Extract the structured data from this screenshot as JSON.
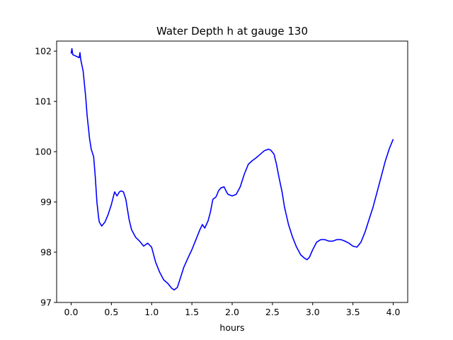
{
  "chart_data": {
    "type": "line",
    "title": "Water Depth h at gauge 130",
    "xlabel": "hours",
    "ylabel": "",
    "xlim": [
      -0.18,
      4.18
    ],
    "ylim": [
      97.0,
      102.2
    ],
    "xticks": [
      0.0,
      0.5,
      1.0,
      1.5,
      2.0,
      2.5,
      3.0,
      3.5,
      4.0
    ],
    "xtick_labels": [
      "0.0",
      "0.5",
      "1.0",
      "1.5",
      "2.0",
      "2.5",
      "3.0",
      "3.5",
      "4.0"
    ],
    "yticks": [
      97,
      98,
      99,
      100,
      101,
      102
    ],
    "ytick_labels": [
      "97",
      "98",
      "99",
      "100",
      "101",
      "102"
    ],
    "grid": false,
    "legend": "none",
    "series": [
      {
        "color": "#0000ff",
        "x": [
          0.0,
          0.01,
          0.02,
          0.1,
          0.11,
          0.12,
          0.15,
          0.18,
          0.2,
          0.22,
          0.23,
          0.24,
          0.25,
          0.28,
          0.3,
          0.32,
          0.34,
          0.35,
          0.38,
          0.42,
          0.46,
          0.5,
          0.54,
          0.57,
          0.6,
          0.62,
          0.65,
          0.68,
          0.7,
          0.72,
          0.75,
          0.8,
          0.85,
          0.9,
          0.95,
          1.0,
          1.05,
          1.1,
          1.15,
          1.2,
          1.25,
          1.28,
          1.32,
          1.36,
          1.4,
          1.45,
          1.5,
          1.55,
          1.6,
          1.63,
          1.66,
          1.7,
          1.73,
          1.76,
          1.8,
          1.83,
          1.86,
          1.9,
          1.93,
          1.95,
          2.0,
          2.05,
          2.1,
          2.15,
          2.2,
          2.25,
          2.3,
          2.35,
          2.4,
          2.45,
          2.48,
          2.52,
          2.55,
          2.58,
          2.62,
          2.65,
          2.7,
          2.75,
          2.8,
          2.85,
          2.9,
          2.93,
          2.96,
          3.0,
          3.05,
          3.1,
          3.15,
          3.2,
          3.25,
          3.3,
          3.35,
          3.4,
          3.45,
          3.5,
          3.55,
          3.6,
          3.65,
          3.7,
          3.75,
          3.8,
          3.85,
          3.9,
          3.95,
          4.0
        ],
        "y": [
          101.95,
          102.05,
          101.93,
          101.87,
          101.97,
          101.83,
          101.6,
          101.1,
          100.7,
          100.4,
          100.25,
          100.15,
          100.05,
          99.9,
          99.5,
          99.0,
          98.7,
          98.6,
          98.52,
          98.6,
          98.75,
          98.95,
          99.2,
          99.12,
          99.2,
          99.22,
          99.2,
          99.05,
          98.85,
          98.65,
          98.45,
          98.3,
          98.22,
          98.12,
          98.18,
          98.1,
          97.8,
          97.6,
          97.45,
          97.38,
          97.28,
          97.25,
          97.3,
          97.5,
          97.7,
          97.88,
          98.05,
          98.25,
          98.45,
          98.55,
          98.48,
          98.62,
          98.8,
          99.05,
          99.1,
          99.22,
          99.28,
          99.3,
          99.2,
          99.15,
          99.12,
          99.15,
          99.3,
          99.55,
          99.75,
          99.82,
          99.88,
          99.95,
          100.02,
          100.05,
          100.03,
          99.95,
          99.75,
          99.5,
          99.2,
          98.9,
          98.55,
          98.3,
          98.1,
          97.95,
          97.88,
          97.85,
          97.9,
          98.05,
          98.2,
          98.25,
          98.25,
          98.22,
          98.22,
          98.25,
          98.25,
          98.22,
          98.18,
          98.12,
          98.1,
          98.2,
          98.4,
          98.65,
          98.9,
          99.2,
          99.5,
          99.8,
          100.05,
          100.25
        ]
      }
    ]
  }
}
